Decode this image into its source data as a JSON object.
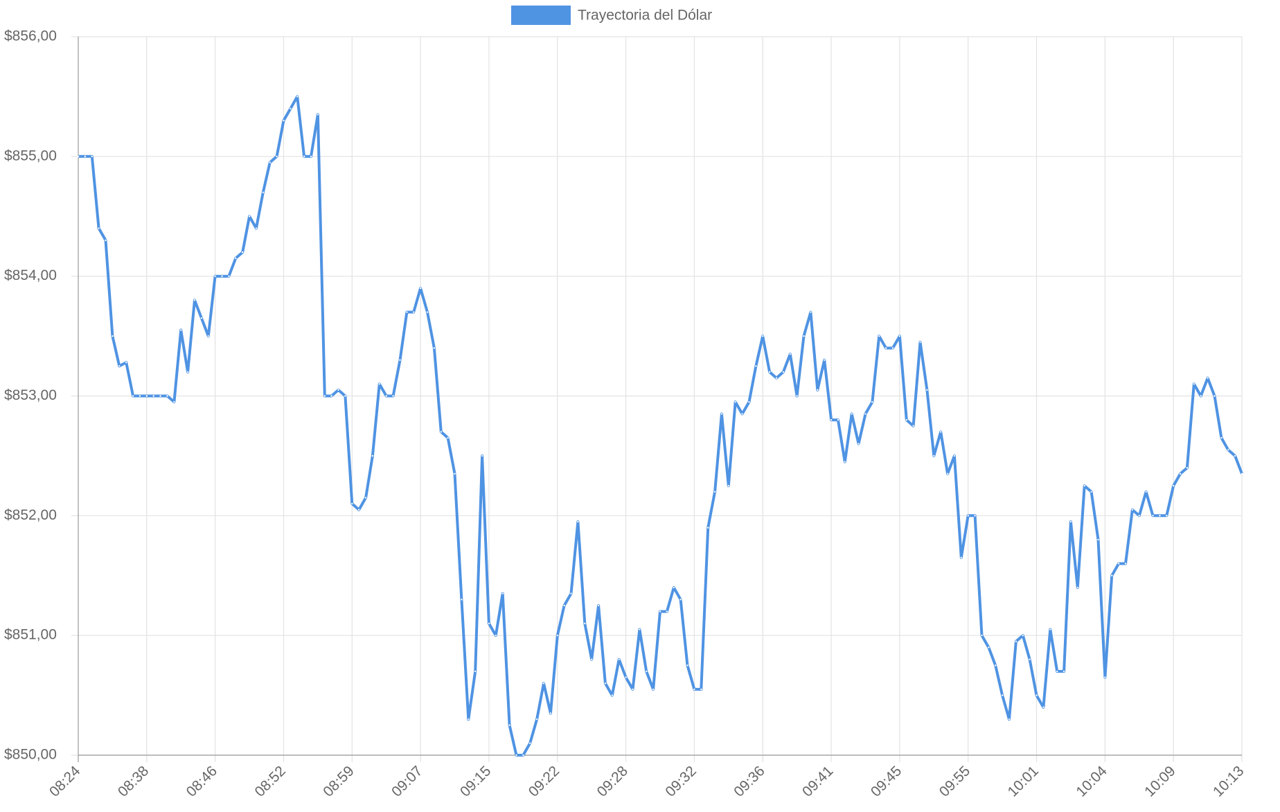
{
  "chart_data": {
    "type": "line",
    "categories": [
      "08:24",
      null,
      null,
      null,
      null,
      null,
      null,
      null,
      null,
      null,
      "08:38",
      null,
      null,
      null,
      null,
      null,
      null,
      null,
      null,
      null,
      "08:46",
      null,
      null,
      null,
      null,
      null,
      null,
      null,
      null,
      null,
      "08:52",
      null,
      null,
      null,
      null,
      null,
      null,
      null,
      null,
      null,
      "08:59",
      null,
      null,
      null,
      null,
      null,
      null,
      null,
      null,
      null,
      "09:07",
      null,
      null,
      null,
      null,
      null,
      null,
      null,
      null,
      null,
      "09:15",
      null,
      null,
      null,
      null,
      null,
      null,
      null,
      null,
      null,
      "09:22",
      null,
      null,
      null,
      null,
      null,
      null,
      null,
      null,
      null,
      "09:28",
      null,
      null,
      null,
      null,
      null,
      null,
      null,
      null,
      null,
      "09:32",
      null,
      null,
      null,
      null,
      null,
      null,
      null,
      null,
      null,
      "09:36",
      null,
      null,
      null,
      null,
      null,
      null,
      null,
      null,
      null,
      "09:41",
      null,
      null,
      null,
      null,
      null,
      null,
      null,
      null,
      null,
      "09:45",
      null,
      null,
      null,
      null,
      null,
      null,
      null,
      null,
      null,
      "09:55",
      null,
      null,
      null,
      null,
      null,
      null,
      null,
      null,
      null,
      "10:01",
      null,
      null,
      null,
      null,
      null,
      null,
      null,
      null,
      null,
      "10:04",
      null,
      null,
      null,
      null,
      null,
      null,
      null,
      null,
      null,
      "10:09",
      null,
      null,
      null,
      null,
      null,
      null,
      null,
      null,
      null,
      "10:13"
    ],
    "series": [
      {
        "name": "Trayectoria del Dólar",
        "color": "#4f93e3",
        "values": [
          855.0,
          855.0,
          855.0,
          854.4,
          854.3,
          853.5,
          853.25,
          853.28,
          853.0,
          853.0,
          853.0,
          853.0,
          853.0,
          853.0,
          852.95,
          853.55,
          853.2,
          853.8,
          853.65,
          853.5,
          854.0,
          854.0,
          854.0,
          854.15,
          854.2,
          854.5,
          854.4,
          854.7,
          854.95,
          855.0,
          855.3,
          855.4,
          855.5,
          855.0,
          855.0,
          855.35,
          853.0,
          853.0,
          853.05,
          853.0,
          852.1,
          852.05,
          852.15,
          852.5,
          853.1,
          853.0,
          853.0,
          853.3,
          853.7,
          853.7,
          853.9,
          853.7,
          853.4,
          852.7,
          852.65,
          852.35,
          851.3,
          850.3,
          850.7,
          852.5,
          851.1,
          851.0,
          851.35,
          850.25,
          850.0,
          850.0,
          850.1,
          850.3,
          850.6,
          850.35,
          851.0,
          851.25,
          851.35,
          851.95,
          851.1,
          850.8,
          851.25,
          850.6,
          850.5,
          850.8,
          850.65,
          850.55,
          851.05,
          850.7,
          850.55,
          851.2,
          851.2,
          851.4,
          851.3,
          850.75,
          850.55,
          850.55,
          851.9,
          852.2,
          852.85,
          852.25,
          852.95,
          852.85,
          852.95,
          853.25,
          853.5,
          853.2,
          853.15,
          853.2,
          853.35,
          853.0,
          853.5,
          853.7,
          853.05,
          853.3,
          852.8,
          852.8,
          852.45,
          852.85,
          852.6,
          852.85,
          852.95,
          853.5,
          853.4,
          853.4,
          853.5,
          852.8,
          852.75,
          853.45,
          853.05,
          852.5,
          852.7,
          852.35,
          852.5,
          851.65,
          852.0,
          852.0,
          851.0,
          850.9,
          850.75,
          850.5,
          850.3,
          850.95,
          851.0,
          850.8,
          850.5,
          850.4,
          851.05,
          850.7,
          850.7,
          851.95,
          851.4,
          852.25,
          852.2,
          851.8,
          850.65,
          851.5,
          851.6,
          851.6,
          852.05,
          852.0,
          852.2,
          852.0,
          852.0,
          852.0,
          852.25,
          852.35,
          852.4,
          853.1,
          853.0,
          853.15,
          853.0,
          852.65,
          852.55,
          852.5,
          852.35
        ]
      }
    ],
    "ylim": [
      850,
      856
    ],
    "yticks": [
      {
        "value": 850,
        "label": "$850,00"
      },
      {
        "value": 851,
        "label": "$851,00"
      },
      {
        "value": 852,
        "label": "$852,00"
      },
      {
        "value": 853,
        "label": "$853,00"
      },
      {
        "value": 854,
        "label": "$854,00"
      },
      {
        "value": 855,
        "label": "$855,00"
      },
      {
        "value": 856,
        "label": "$856,00"
      }
    ],
    "grid": true,
    "legend": "top"
  }
}
